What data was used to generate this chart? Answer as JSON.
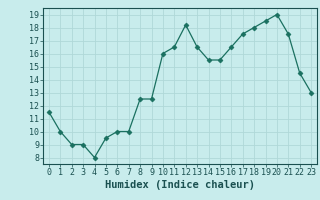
{
  "x": [
    0,
    1,
    2,
    3,
    4,
    5,
    6,
    7,
    8,
    9,
    10,
    11,
    12,
    13,
    14,
    15,
    16,
    17,
    18,
    19,
    20,
    21,
    22,
    23
  ],
  "y": [
    11.5,
    10.0,
    9.0,
    9.0,
    8.0,
    9.5,
    10.0,
    10.0,
    12.5,
    12.5,
    16.0,
    16.5,
    18.2,
    16.5,
    15.5,
    15.5,
    16.5,
    17.5,
    18.0,
    18.5,
    19.0,
    17.5,
    14.5,
    13.0
  ],
  "line_color": "#1a7060",
  "marker": "D",
  "marker_size": 2.5,
  "background_color": "#c8ecec",
  "grid_color": "#b0d8d8",
  "xlabel": "Humidex (Indice chaleur)",
  "xlim": [
    -0.5,
    23.5
  ],
  "ylim": [
    7.5,
    19.5
  ],
  "yticks": [
    8,
    9,
    10,
    11,
    12,
    13,
    14,
    15,
    16,
    17,
    18,
    19
  ],
  "xticks": [
    0,
    1,
    2,
    3,
    4,
    5,
    6,
    7,
    8,
    9,
    10,
    11,
    12,
    13,
    14,
    15,
    16,
    17,
    18,
    19,
    20,
    21,
    22,
    23
  ],
  "tick_color": "#1a5050",
  "label_fontsize": 6.0,
  "xlabel_fontsize": 7.5
}
